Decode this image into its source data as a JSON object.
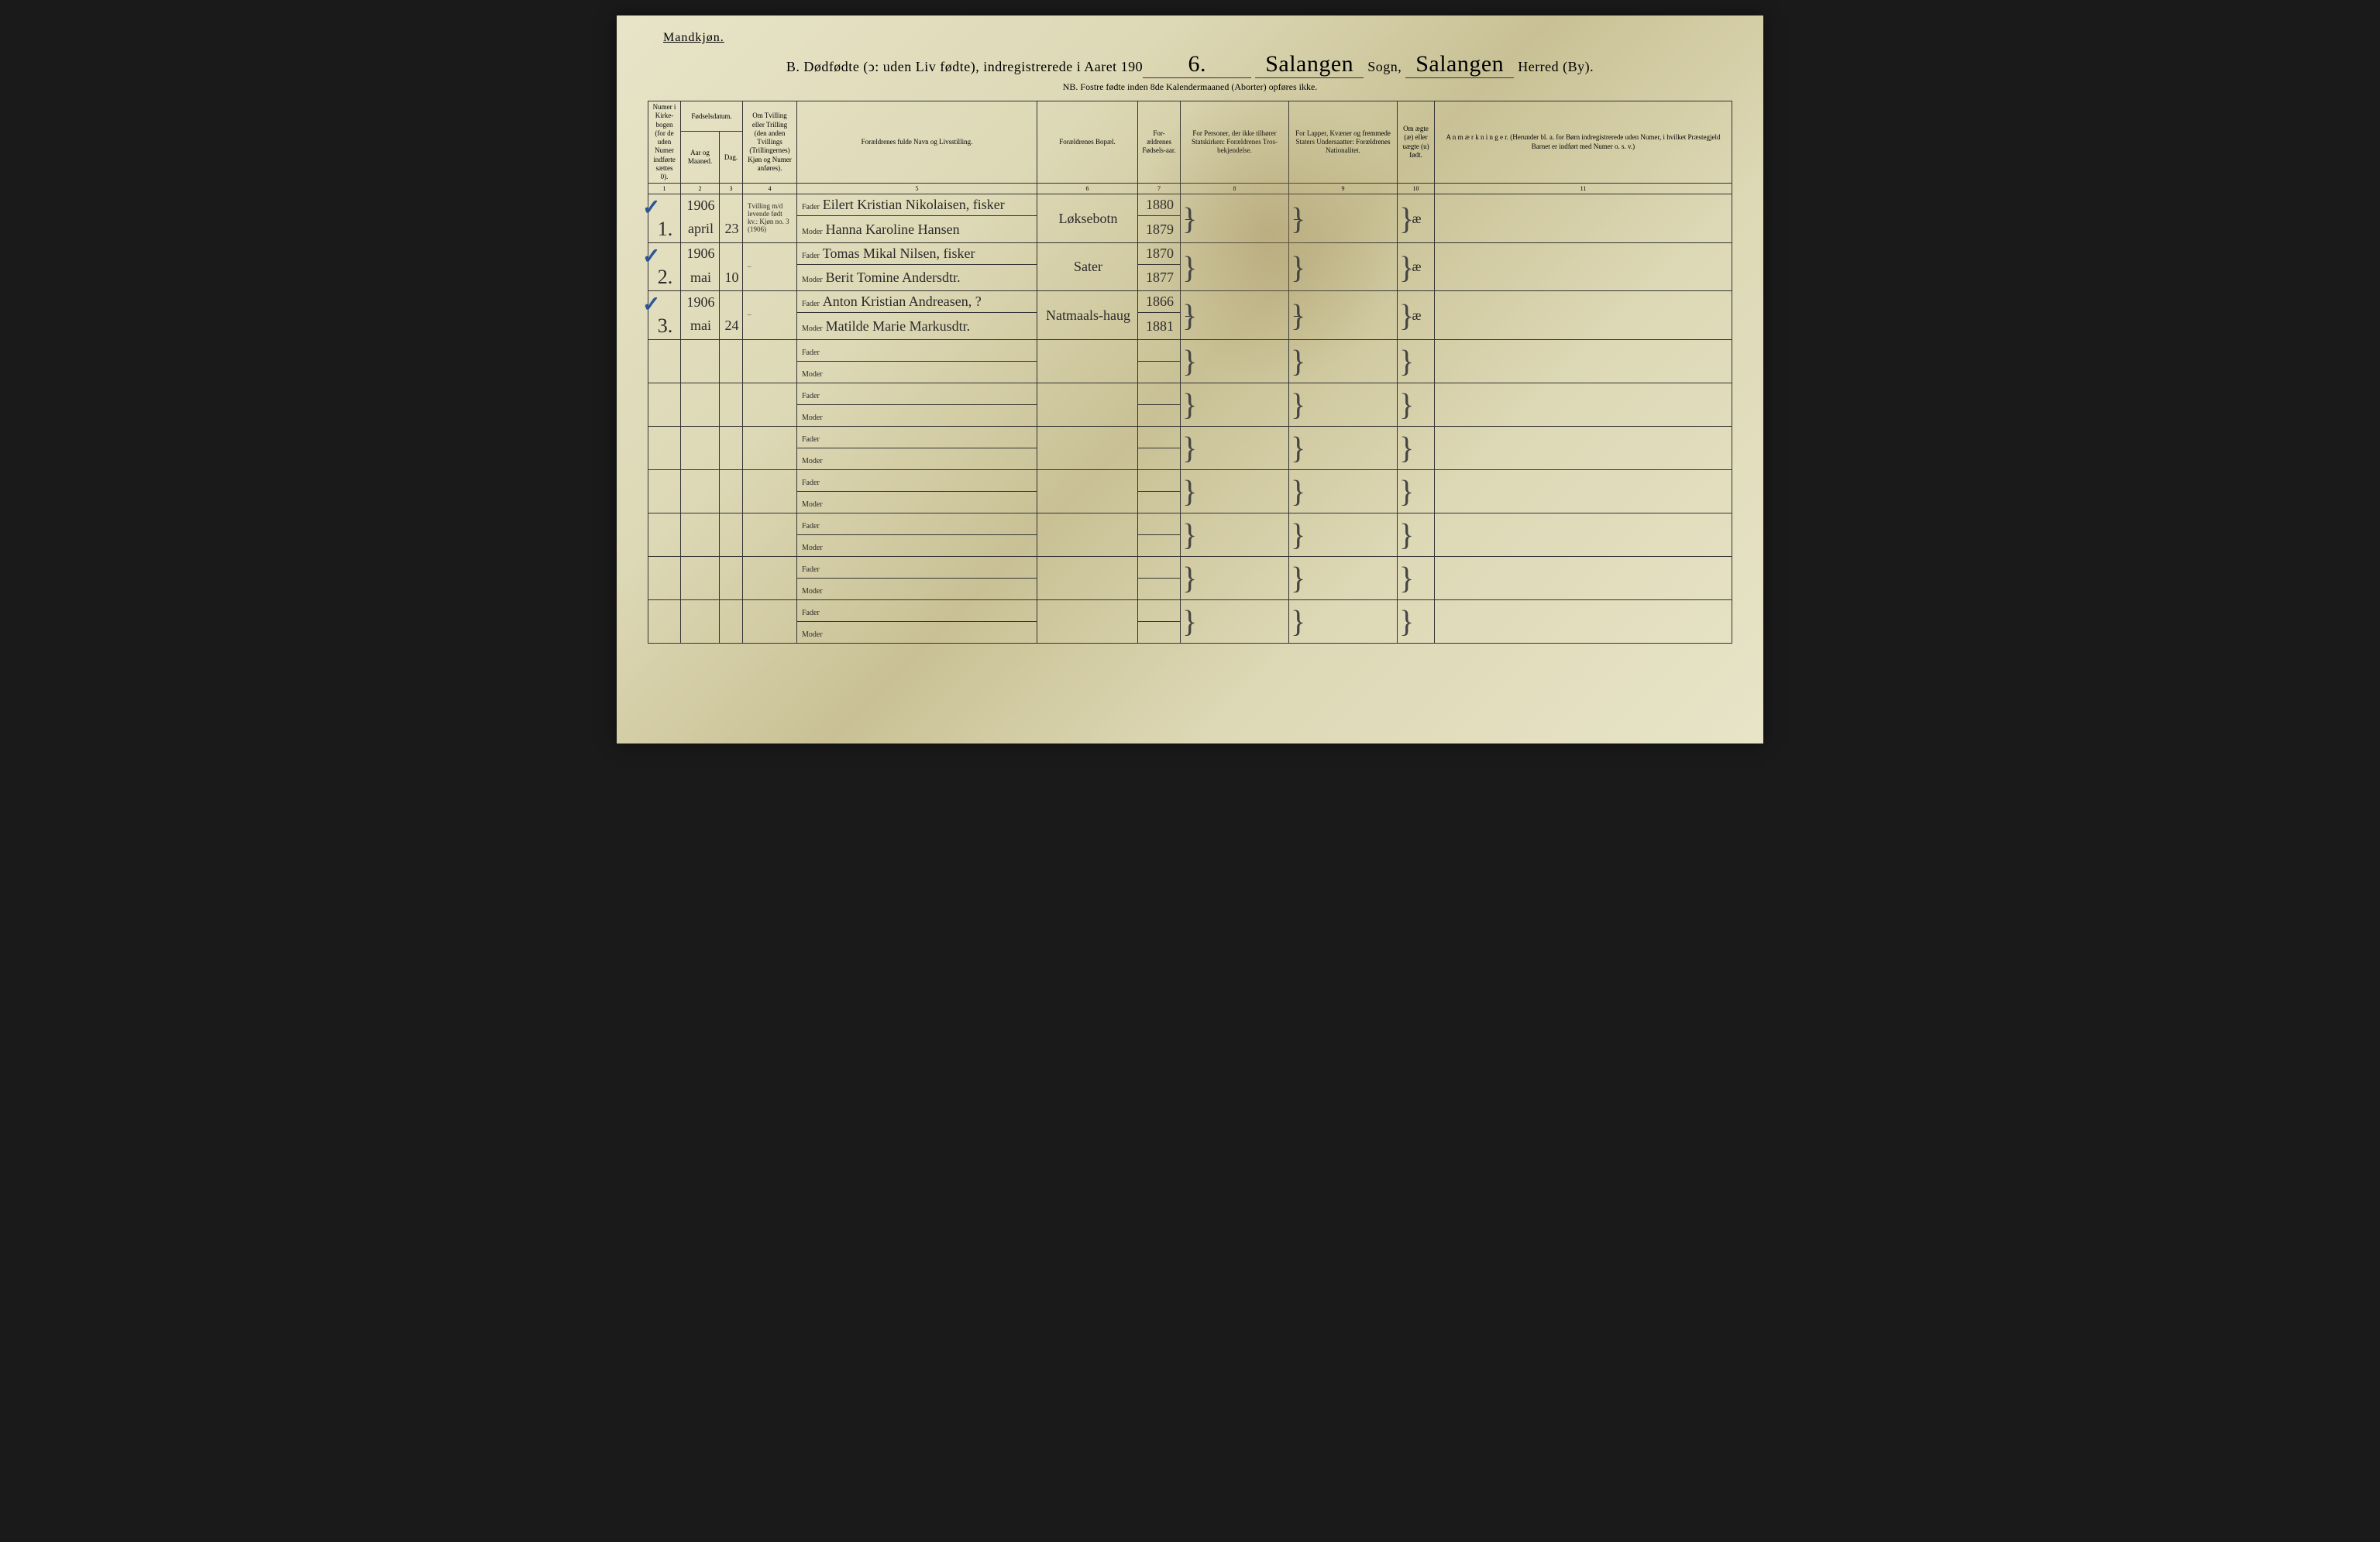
{
  "header": {
    "gender": "Mandkjøn.",
    "title_prefix": "B.  Dødfødte (ↄ: uden Liv fødte), indregistrerede i Aaret 190",
    "year_suffix": "6.",
    "sogn_label": "Sogn,",
    "herred_label": "Herred (By).",
    "sogn_value": "Salangen",
    "herred_value": "Salangen",
    "note": "NB.  Fostre fødte inden 8de Kalendermaaned (Aborter) opføres ikke."
  },
  "columns": {
    "c1": "Numer i Kirke-bogen (for de uden Numer indførte sættes 0).",
    "c2_top": "Fødselsdatum.",
    "c2a": "Aar og Maaned.",
    "c2b": "Dag.",
    "c3": "Om Tvilling eller Trilling (den anden Tvillings (Trillingernes) Kjøn og Numer anføres).",
    "c4": "Forældrenes fulde Navn og Livsstilling.",
    "c5": "Forældrenes Bopæl.",
    "c6": "For-ældrenes Fødsels-aar.",
    "c7": "For Personer, der ikke tilhører Statskirken: Forældrenes Tros-bekjendelse.",
    "c8": "For Lapper, Kvæner og fremmede Staters Undersaatter: Forældrenes Nationalitet.",
    "c9": "Om ægte (æ) eller uægte (u) født.",
    "c10": "A n m æ r k n i n g e r. (Herunder bl. a. for Børn indregistrerede uden Numer, i hvilket Præstegjeld Barnet er indført med Numer o. s. v.)"
  },
  "colnums": [
    "1",
    "2",
    "3",
    "4",
    "5",
    "6",
    "7",
    "8",
    "9",
    "10",
    "11"
  ],
  "labels": {
    "fader": "Fader",
    "moder": "Moder"
  },
  "entries": [
    {
      "num": "1",
      "check": "✓",
      "year": "1906",
      "month": "april",
      "day": "23",
      "tvilling": "Tvilling m/d levende født kv.: Kjøn no. 3 (1906)",
      "fader": "Eilert Kristian Nikolaisen, fisker",
      "moder": "Hanna Karoline Hansen",
      "bopael": "Løksebotn",
      "f_aar": "1880",
      "m_aar": "1879",
      "stats": "–",
      "nat": "–",
      "aegte": "æ",
      "anm": ""
    },
    {
      "num": "2",
      "check": "✓",
      "year": "1906",
      "month": "mai",
      "day": "10",
      "tvilling": "–",
      "fader": "Tomas Mikal Nilsen, fisker",
      "moder": "Berit Tomine Andersdtr.",
      "bopael": "Sater",
      "f_aar": "1870",
      "m_aar": "1877",
      "stats": "",
      "nat": "",
      "aegte": "æ",
      "anm": ""
    },
    {
      "num": "3",
      "check": "✓",
      "year": "1906",
      "month": "mai",
      "day": "24",
      "tvilling": "–",
      "fader": "Anton Kristian Andreasen, ?",
      "moder": "Matilde Marie Markusdtr.",
      "bopael": "Natmaals-haug",
      "f_aar": "1866",
      "m_aar": "1881",
      "stats": "–",
      "nat": "–",
      "aegte": "æ",
      "anm": ""
    }
  ],
  "empty_rows": 7,
  "colors": {
    "ink": "#2a2a2a",
    "check": "#2a5599",
    "paper_light": "#e8e4c8",
    "paper_dark": "#c9c195"
  }
}
